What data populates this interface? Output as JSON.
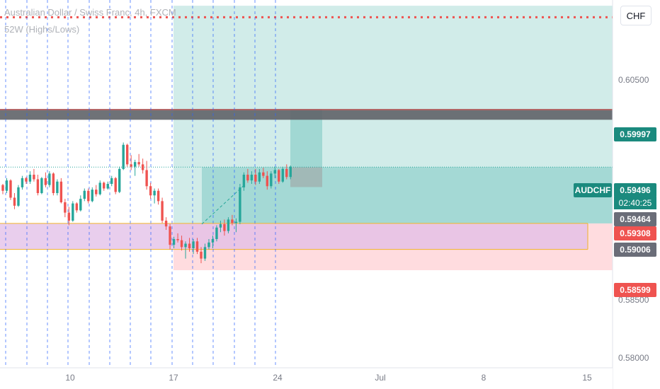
{
  "header": {
    "symbol_title": "Australian Dollar / Swiss Franc, 4h, FXCM",
    "indicator": "52W (Highs/Lows)"
  },
  "currency_button": "CHF",
  "symbol_tag": "AUDCHF",
  "countdown": "02:40:25",
  "colors": {
    "up": "#26a69a",
    "down": "#ef5350",
    "target_zone": "#b2dfdb",
    "stop_zone": "#f8bbd0",
    "support_zone": "#e1bee7",
    "resistance_band": "#5f6368",
    "highs_line": "#ef5350",
    "dashed_vertical": "#2962ff"
  },
  "chart_data": {
    "type": "candlestick",
    "x_ticks": [
      "10",
      "17",
      "24",
      "Jul",
      "8",
      "15"
    ],
    "y_ticks": [
      "0.60500",
      "0.58500",
      "0.58000"
    ],
    "price_tags": [
      {
        "label": "0.59997",
        "kind": "resistance"
      },
      {
        "label": "0.59496",
        "kind": "last-price"
      },
      {
        "label": "0.59464",
        "kind": "gray"
      },
      {
        "label": "0.59308",
        "kind": "down"
      },
      {
        "label": "0.59006",
        "kind": "gray"
      },
      {
        "label": "0.58599",
        "kind": "down"
      }
    ],
    "levels": {
      "resistance_top": 0.60002,
      "resistance_bottom": 0.59908,
      "high_52w": 0.608,
      "last_price": 0.59496,
      "support_top": 0.59006,
      "support_bottom": 0.5878,
      "target_top": 0.609,
      "entry": 0.59006,
      "stop": 0.58599
    },
    "y_range": [
      0.5775,
      0.6095
    ],
    "candles": [
      [
        0.5934,
        0.5935,
        0.5926,
        0.5929
      ],
      [
        0.5929,
        0.594,
        0.5927,
        0.5938
      ],
      [
        0.5938,
        0.5939,
        0.5921,
        0.5923
      ],
      [
        0.5923,
        0.5927,
        0.5913,
        0.5916
      ],
      [
        0.5916,
        0.5934,
        0.5915,
        0.5932
      ],
      [
        0.5932,
        0.5942,
        0.593,
        0.594
      ],
      [
        0.594,
        0.5941,
        0.5935,
        0.5937
      ],
      [
        0.5937,
        0.5946,
        0.5935,
        0.5943
      ],
      [
        0.5943,
        0.5948,
        0.5937,
        0.5939
      ],
      [
        0.5939,
        0.5943,
        0.5925,
        0.5927
      ],
      [
        0.5927,
        0.5941,
        0.5926,
        0.594
      ],
      [
        0.594,
        0.5945,
        0.5932,
        0.5934
      ],
      [
        0.5934,
        0.5946,
        0.5932,
        0.5944
      ],
      [
        0.5944,
        0.5945,
        0.5925,
        0.5927
      ],
      [
        0.5927,
        0.5939,
        0.5925,
        0.5937
      ],
      [
        0.5937,
        0.594,
        0.5918,
        0.5919
      ],
      [
        0.5919,
        0.5922,
        0.5906,
        0.591
      ],
      [
        0.591,
        0.5915,
        0.5899,
        0.5903
      ],
      [
        0.5903,
        0.592,
        0.5902,
        0.5918
      ],
      [
        0.5918,
        0.5919,
        0.591,
        0.5912
      ],
      [
        0.5912,
        0.5925,
        0.5911,
        0.5922
      ],
      [
        0.5922,
        0.5931,
        0.592,
        0.5929
      ],
      [
        0.5929,
        0.5931,
        0.5918,
        0.592
      ],
      [
        0.592,
        0.5932,
        0.5919,
        0.593
      ],
      [
        0.593,
        0.5934,
        0.5924,
        0.5926
      ],
      [
        0.5926,
        0.5938,
        0.5925,
        0.5936
      ],
      [
        0.5936,
        0.5937,
        0.5929,
        0.5931
      ],
      [
        0.5931,
        0.5937,
        0.593,
        0.5935
      ],
      [
        0.5935,
        0.5942,
        0.5933,
        0.594
      ],
      [
        0.594,
        0.5941,
        0.5926,
        0.5928
      ],
      [
        0.5928,
        0.595,
        0.5927,
        0.5948
      ],
      [
        0.5948,
        0.5971,
        0.5947,
        0.5969
      ],
      [
        0.5969,
        0.597,
        0.595,
        0.5952
      ],
      [
        0.5952,
        0.596,
        0.5947,
        0.595
      ],
      [
        0.595,
        0.5956,
        0.5942,
        0.5954
      ],
      [
        0.5954,
        0.5961,
        0.595,
        0.5952
      ],
      [
        0.5952,
        0.5957,
        0.5944,
        0.5947
      ],
      [
        0.5947,
        0.5955,
        0.593,
        0.5933
      ],
      [
        0.5933,
        0.5936,
        0.5922,
        0.5925
      ],
      [
        0.5925,
        0.5931,
        0.5918,
        0.5929
      ],
      [
        0.5929,
        0.5931,
        0.5917,
        0.592
      ],
      [
        0.592,
        0.5923,
        0.5901,
        0.5903
      ],
      [
        0.5903,
        0.5906,
        0.5895,
        0.5898
      ],
      [
        0.5898,
        0.59,
        0.5878,
        0.5882
      ],
      [
        0.5882,
        0.5889,
        0.5879,
        0.5887
      ],
      [
        0.5887,
        0.5892,
        0.5884,
        0.5886
      ],
      [
        0.5886,
        0.589,
        0.5877,
        0.588
      ],
      [
        0.588,
        0.5885,
        0.587,
        0.5883
      ],
      [
        0.5883,
        0.5888,
        0.5876,
        0.5879
      ],
      [
        0.5879,
        0.5887,
        0.5874,
        0.5885
      ],
      [
        0.5885,
        0.5888,
        0.5874,
        0.5876
      ],
      [
        0.5876,
        0.588,
        0.5866,
        0.587
      ],
      [
        0.587,
        0.5883,
        0.5868,
        0.588
      ],
      [
        0.588,
        0.5887,
        0.5878,
        0.5884
      ],
      [
        0.5884,
        0.589,
        0.5879,
        0.5887
      ],
      [
        0.5887,
        0.5899,
        0.5885,
        0.5897
      ],
      [
        0.5897,
        0.5903,
        0.5893,
        0.59
      ],
      [
        0.59,
        0.5904,
        0.589,
        0.5894
      ],
      [
        0.5894,
        0.5906,
        0.5892,
        0.5904
      ],
      [
        0.5904,
        0.5908,
        0.5899,
        0.5901
      ],
      [
        0.5901,
        0.5905,
        0.5893,
        0.5902
      ],
      [
        0.5902,
        0.5935,
        0.59,
        0.5932
      ],
      [
        0.5932,
        0.5945,
        0.5929,
        0.5943
      ],
      [
        0.5943,
        0.5948,
        0.5936,
        0.5938
      ],
      [
        0.5938,
        0.5946,
        0.5935,
        0.5943
      ],
      [
        0.5943,
        0.5948,
        0.5934,
        0.5937
      ],
      [
        0.5937,
        0.5948,
        0.5935,
        0.5945
      ],
      [
        0.5945,
        0.5949,
        0.594,
        0.5942
      ],
      [
        0.5942,
        0.5946,
        0.593,
        0.5933
      ],
      [
        0.5933,
        0.5946,
        0.5931,
        0.5944
      ],
      [
        0.5944,
        0.595,
        0.594,
        0.5947
      ],
      [
        0.5947,
        0.5948,
        0.5935,
        0.5937
      ],
      [
        0.5937,
        0.595,
        0.5936,
        0.5948
      ],
      [
        0.5948,
        0.5952,
        0.5939,
        0.5941
      ],
      [
        0.5941,
        0.5951,
        0.5939,
        0.595
      ]
    ]
  }
}
